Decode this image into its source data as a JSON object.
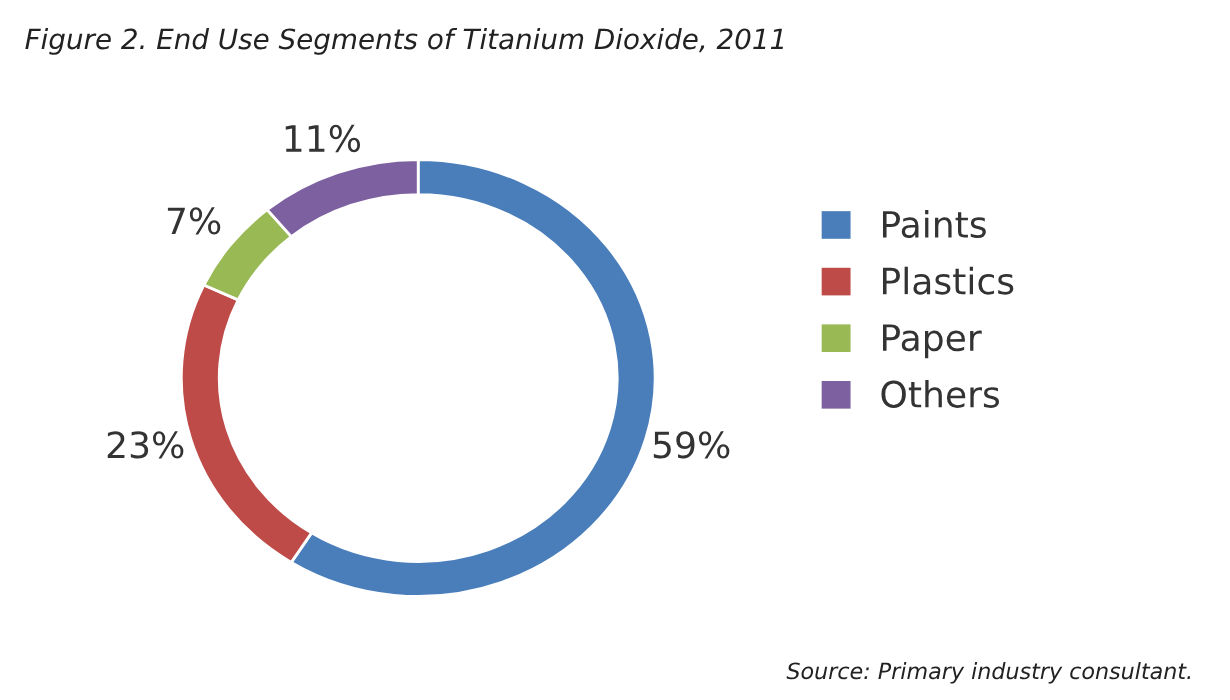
{
  "chart_data": {
    "type": "donut",
    "title": "Figure 2. End Use Segments of Titanium Dioxide, 2011",
    "categories": [
      "Paints",
      "Plastics",
      "Paper",
      "Others"
    ],
    "values": [
      59,
      23,
      7,
      11
    ],
    "colors": [
      "#4a7ebb",
      "#be4b48",
      "#98b954",
      "#7d60a0"
    ],
    "value_labels": [
      "59%",
      "23%",
      "7%",
      "11%"
    ],
    "legend": "right",
    "annotations": [
      "Source: Primary industry consultant."
    ]
  }
}
